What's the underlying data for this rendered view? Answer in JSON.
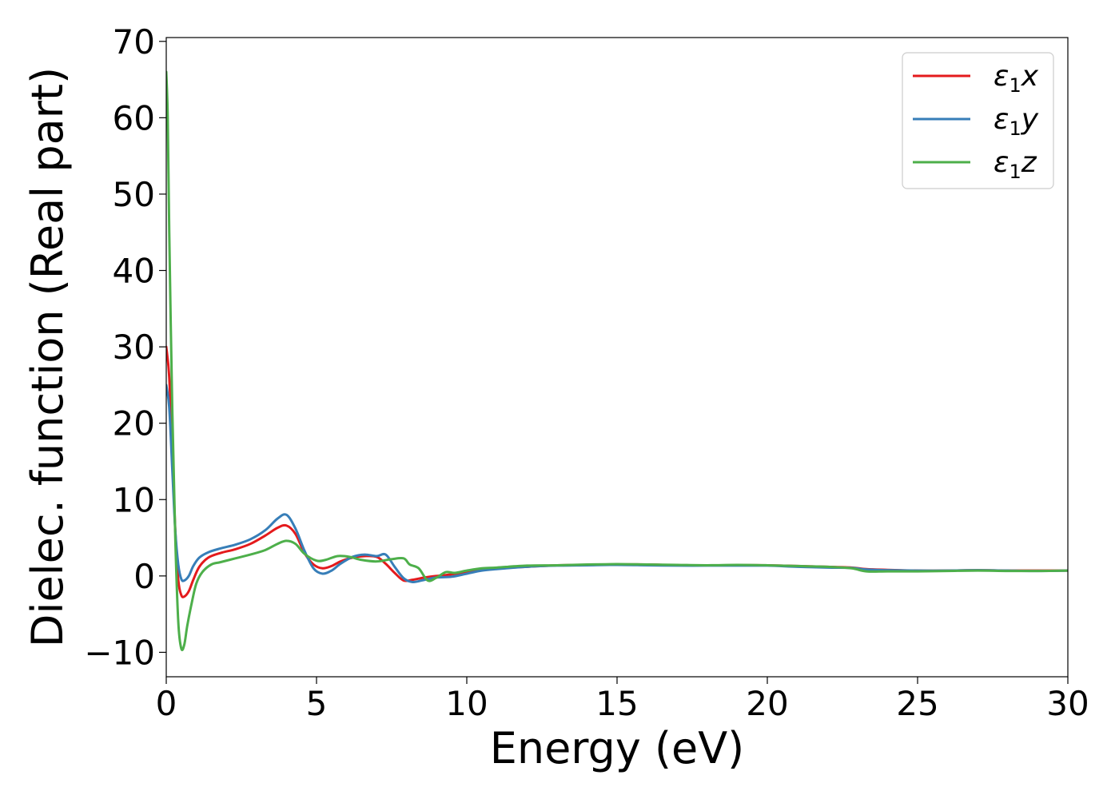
{
  "chart_data": {
    "type": "line",
    "xlabel": "Energy (eV)",
    "ylabel": "Dielec. function (Real part)",
    "xlim": [
      0,
      30
    ],
    "ylim": [
      -13.2,
      70.5
    ],
    "xticks": [
      0,
      5,
      10,
      15,
      20,
      25,
      30
    ],
    "xtick_labels": [
      "0",
      "5",
      "10",
      "15",
      "20",
      "25",
      "30"
    ],
    "yticks": [
      -10,
      0,
      10,
      20,
      30,
      40,
      50,
      60,
      70
    ],
    "ytick_labels": [
      "−10",
      "0",
      "10",
      "20",
      "30",
      "40",
      "50",
      "60",
      "70"
    ],
    "grid": false,
    "legend_position": "top-right",
    "series": [
      {
        "name": "ε₁x",
        "legend": {
          "base": "ε",
          "sub": "1",
          "tail": "x"
        },
        "color": "#e41a1c",
        "x": [
          0,
          0.1,
          0.2,
          0.3,
          0.4,
          0.5,
          0.6,
          0.75,
          0.9,
          1.1,
          1.4,
          1.8,
          2.3,
          2.8,
          3.3,
          3.7,
          4.0,
          4.3,
          4.6,
          4.9,
          5.2,
          5.5,
          5.8,
          6.2,
          6.6,
          7.0,
          7.3,
          7.6,
          7.9,
          8.2,
          8.6,
          9.0,
          9.5,
          10.0,
          10.5,
          11,
          12,
          13,
          14,
          15,
          16,
          17,
          18,
          19,
          20,
          21,
          22,
          22.8,
          23.3,
          24,
          25,
          26,
          27,
          28,
          29,
          30
        ],
        "y": [
          30,
          26,
          16,
          6,
          -0.5,
          -2.5,
          -2.7,
          -2.0,
          -0.5,
          1.2,
          2.4,
          3.0,
          3.5,
          4.2,
          5.3,
          6.3,
          6.6,
          5.5,
          3.0,
          1.5,
          1.0,
          1.3,
          1.9,
          2.4,
          2.6,
          2.5,
          1.6,
          0.4,
          -0.6,
          -0.5,
          -0.2,
          0.0,
          0.2,
          0.5,
          0.8,
          1.0,
          1.2,
          1.4,
          1.45,
          1.5,
          1.5,
          1.4,
          1.4,
          1.4,
          1.4,
          1.3,
          1.2,
          1.1,
          0.9,
          0.8,
          0.7,
          0.7,
          0.75,
          0.7,
          0.7,
          0.7
        ]
      },
      {
        "name": "ε₁y",
        "legend": {
          "base": "ε",
          "sub": "1",
          "tail": "y"
        },
        "color": "#377eb8",
        "x": [
          0,
          0.1,
          0.2,
          0.3,
          0.4,
          0.5,
          0.6,
          0.75,
          0.9,
          1.1,
          1.4,
          1.8,
          2.3,
          2.8,
          3.3,
          3.7,
          4.0,
          4.3,
          4.6,
          4.9,
          5.2,
          5.5,
          5.8,
          6.2,
          6.6,
          7.0,
          7.3,
          7.6,
          7.9,
          8.2,
          8.6,
          9.0,
          9.5,
          10.0,
          10.5,
          11,
          12,
          13,
          14,
          15,
          16,
          17,
          18,
          19,
          20,
          21,
          22,
          22.8,
          23.3,
          24,
          25,
          26,
          27,
          28,
          29,
          30
        ],
        "y": [
          25,
          22,
          14,
          6,
          1.5,
          -0.4,
          -0.6,
          0.0,
          1.3,
          2.4,
          3.1,
          3.6,
          4.1,
          4.8,
          6.0,
          7.5,
          8.0,
          6.2,
          3.3,
          1.0,
          0.3,
          0.7,
          1.6,
          2.5,
          2.8,
          2.6,
          2.8,
          1.2,
          -0.3,
          -0.8,
          -0.5,
          -0.2,
          -0.1,
          0.3,
          0.7,
          0.9,
          1.2,
          1.35,
          1.4,
          1.45,
          1.4,
          1.35,
          1.35,
          1.35,
          1.35,
          1.2,
          1.1,
          1.05,
          0.85,
          0.75,
          0.7,
          0.7,
          0.75,
          0.7,
          0.65,
          0.7
        ]
      },
      {
        "name": "ε₁z",
        "legend": {
          "base": "ε",
          "sub": "1",
          "tail": "z"
        },
        "color": "#4daf4a",
        "x": [
          0,
          0.05,
          0.1,
          0.2,
          0.3,
          0.4,
          0.5,
          0.6,
          0.7,
          0.85,
          1.0,
          1.2,
          1.5,
          1.8,
          2.3,
          2.8,
          3.3,
          3.7,
          4.0,
          4.3,
          4.6,
          5.0,
          5.3,
          5.7,
          6.1,
          6.5,
          7.0,
          7.5,
          7.9,
          8.1,
          8.4,
          8.7,
          9.0,
          9.3,
          9.6,
          10.0,
          10.5,
          11,
          12,
          13,
          14,
          15,
          16,
          17,
          18,
          19,
          20,
          21,
          22,
          22.8,
          23.3,
          24,
          25,
          26,
          27,
          28,
          29,
          30
        ],
        "y": [
          66,
          60,
          45,
          22,
          5,
          -6,
          -9.5,
          -9.0,
          -6.5,
          -3.5,
          -1.0,
          0.5,
          1.5,
          1.8,
          2.3,
          2.8,
          3.4,
          4.2,
          4.6,
          4.2,
          2.9,
          2.0,
          2.1,
          2.6,
          2.5,
          2.1,
          1.9,
          2.2,
          2.3,
          1.5,
          1.0,
          -0.6,
          -0.2,
          0.5,
          0.4,
          0.7,
          1.0,
          1.1,
          1.35,
          1.4,
          1.5,
          1.55,
          1.5,
          1.45,
          1.4,
          1.45,
          1.4,
          1.3,
          1.2,
          1.0,
          0.6,
          0.6,
          0.6,
          0.65,
          0.7,
          0.65,
          0.65,
          0.7
        ]
      }
    ]
  }
}
